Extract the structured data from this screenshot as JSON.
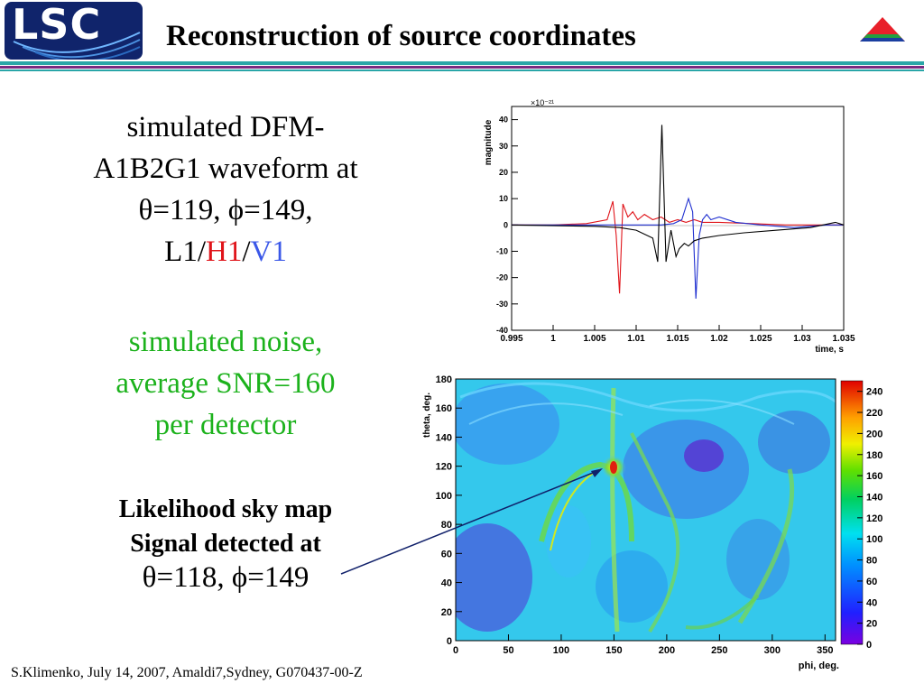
{
  "header": {
    "logo_text": "LSC",
    "title": "Reconstruction of source coordinates"
  },
  "left_text": {
    "line1": "simulated DFM-",
    "line2": "A1B2G1 waveform at",
    "line3": "θ=119, ϕ=149,",
    "line4_prefix": "L1/",
    "line4_h1": "H1",
    "line4_sep": "/",
    "line4_v1": "V1",
    "noise_line1": "simulated noise,",
    "noise_line2": "average SNR=160",
    "noise_line3": "per detector",
    "likelihood_line1": "Likelihood sky map",
    "likelihood_line2": "Signal detected at",
    "detected_coords": "θ=118, ϕ=149"
  },
  "footer": {
    "text": "S.Klimenko, July 14, 2007, Amaldi7,Sydney, G070437-00-Z"
  },
  "colors": {
    "logo_bg": "#10246b",
    "rule_teal": "#2aa6a8",
    "rule_purple": "#7a2a80",
    "red_trace": "#e0141a",
    "blue_trace": "#2030d0",
    "green_text": "#1cb21c"
  },
  "chart_data": [
    {
      "type": "line",
      "title": "",
      "ylabel": "magnitude",
      "xlabel": "time, s",
      "y_multiplier": "×10⁻²¹",
      "xlim": [
        0.995,
        1.035
      ],
      "ylim": [
        -40,
        45
      ],
      "xticks": [
        "0.995",
        "1",
        "1.005",
        "1.01",
        "1.015",
        "1.02",
        "1.025",
        "1.03",
        "1.035"
      ],
      "yticks": [
        "40",
        "30",
        "20",
        "10",
        "0",
        "-10",
        "-20",
        "-30",
        "-40"
      ],
      "series": [
        {
          "color": "#e0141a",
          "x": [
            0.995,
            1.0,
            1.004,
            1.0065,
            1.0072,
            1.0076,
            1.008,
            1.0084,
            1.009,
            1.0096,
            1.0102,
            1.011,
            1.012,
            1.013,
            1.014,
            1.015,
            1.016,
            1.017,
            1.018,
            1.02,
            1.024,
            1.028,
            1.032,
            1.035
          ],
          "y": [
            0,
            0,
            0.5,
            2,
            9,
            -4,
            -26,
            8,
            3,
            5,
            2,
            4,
            2,
            3,
            1,
            2,
            1,
            2,
            1,
            1,
            0.5,
            0,
            0,
            0
          ]
        },
        {
          "color": "#2030d0",
          "x": [
            0.995,
            1.01,
            1.013,
            1.0145,
            1.0155,
            1.0163,
            1.0168,
            1.0172,
            1.0176,
            1.018,
            1.0185,
            1.019,
            1.02,
            1.022,
            1.025,
            1.029,
            1.033,
            1.035
          ],
          "y": [
            0,
            0,
            0,
            0.5,
            2,
            10,
            5,
            -28,
            -4,
            2,
            4,
            2,
            3,
            1,
            0,
            -1,
            0,
            0
          ]
        },
        {
          "color": "#000000",
          "x": [
            0.995,
            1.005,
            1.008,
            1.01,
            1.012,
            1.0126,
            1.0131,
            1.0136,
            1.0142,
            1.0148,
            1.0152,
            1.0158,
            1.0163,
            1.017,
            1.018,
            1.02,
            1.023,
            1.027,
            1.031,
            1.034,
            1.035
          ],
          "y": [
            0,
            -0.5,
            -1,
            -2,
            -5,
            -14,
            38,
            -14,
            -2,
            -12,
            -9,
            -7,
            -8,
            -6,
            -5,
            -4,
            -3,
            -2,
            -1,
            1,
            0
          ]
        }
      ]
    },
    {
      "type": "heatmap",
      "title": "",
      "xlabel": "phi, deg.",
      "ylabel": "theta, deg.",
      "xlim": [
        0,
        360
      ],
      "ylim": [
        0,
        180
      ],
      "xticks": [
        "0",
        "50",
        "100",
        "150",
        "200",
        "250",
        "300",
        "350"
      ],
      "yticks": [
        "0",
        "20",
        "40",
        "60",
        "80",
        "100",
        "120",
        "140",
        "160",
        "180"
      ],
      "colorbar_range": [
        0,
        250
      ],
      "colorbar_ticks": [
        "0",
        "20",
        "40",
        "60",
        "80",
        "100",
        "120",
        "140",
        "160",
        "180",
        "200",
        "220",
        "240"
      ],
      "peak": {
        "phi": 149,
        "theta": 118
      }
    }
  ]
}
